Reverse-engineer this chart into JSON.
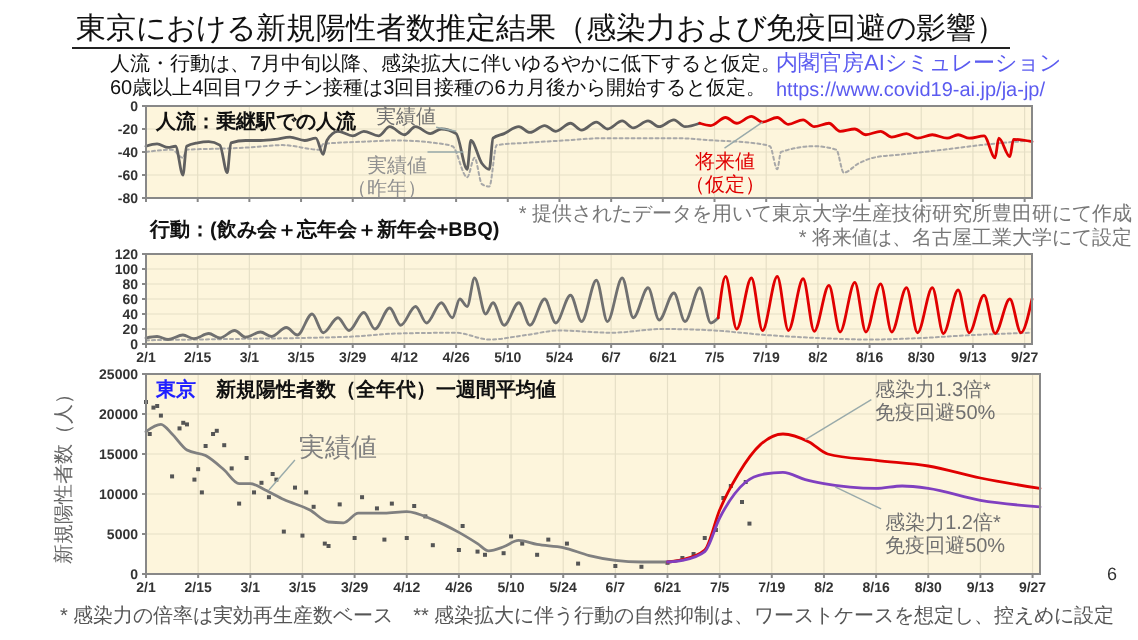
{
  "chart_data": [
    {
      "type": "other",
      "title": "東京における新規陽性者数推定結果（感染力および免疫回避の影響）",
      "subtitle": "人流・行動は、7月中旬以降、感染拡大に伴いゆるやかに低下すると仮定。\n60歳以上4回目ワクチン接種は3回目接種の6カ月後から開始すると仮定。",
      "annotations": [
        "内閣官房AIシミュレーション",
        "https://www.covid19-ai.jp/ja-jp/",
        "* 感染力の倍率は実効再生産数ベース　** 感染拡大に伴う行動の自然抑制は、ワーストケースを想定し、控えめに設定",
        "6"
      ]
    },
    {
      "type": "line",
      "title": "人流：乗継駅での人流",
      "xlim": [
        "--02-01",
        "--09-29"
      ],
      "ylim": [
        -80,
        0
      ],
      "yticks": [
        0,
        -20,
        -40,
        -60,
        -80
      ],
      "xticks": [
        {
          "value": "--02-01",
          "label": null
        },
        {
          "value": "--02-15",
          "label": null
        },
        {
          "value": "--03-01",
          "label": null
        },
        {
          "value": "--03-15",
          "label": null
        },
        {
          "value": "--03-29",
          "label": null
        },
        {
          "value": "--04-12",
          "label": null
        },
        {
          "value": "--04-26",
          "label": null
        },
        {
          "value": "--05-10",
          "label": null
        },
        {
          "value": "--05-24",
          "label": null
        },
        {
          "value": "--06-07",
          "label": null
        },
        {
          "value": "--06-21",
          "label": null
        },
        {
          "value": "--07-05",
          "label": null
        },
        {
          "value": "--07-19",
          "label": null
        },
        {
          "value": "--08-02",
          "label": null
        },
        {
          "value": "--08-16",
          "label": null
        },
        {
          "value": "--08-30",
          "label": null
        },
        {
          "value": "--09-13",
          "label": null
        },
        {
          "value": "--09-27",
          "label": null
        }
      ],
      "tick_labels": "y",
      "grid": true,
      "annotations": [
        {
          "text": "実績値",
          "x": "--04-26",
          "y": -22
        },
        {
          "text": "実績値（昨年）",
          "x": "--04-28",
          "y": -40
        },
        {
          "text": "将来値（仮定）",
          "x": "--07-18",
          "y": -14
        }
      ],
      "series": [
        {
          "color": "#a8a8a8",
          "line_style": "dotted",
          "x": [
            "--02-01",
            "--02-08",
            "--02-11",
            "--02-12",
            "--02-22",
            "--03-01",
            "--03-10",
            "--03-20",
            "--03-21",
            "--04-01",
            "--04-10",
            "--04-20",
            "--04-25",
            "--04-29",
            "--05-01",
            "--05-03",
            "--05-05",
            "--05-07",
            "--05-15",
            "--05-25",
            "--06-05",
            "--06-15",
            "--06-25",
            "--07-05",
            "--07-15",
            "--07-20",
            "--07-22",
            "--07-23",
            "--08-01",
            "--08-07",
            "--08-09",
            "--08-13",
            "--08-17",
            "--08-25",
            "--09-05",
            "--09-15",
            "--09-29"
          ],
          "values": [
            -40,
            -38,
            -45,
            -38,
            -37,
            -36,
            -34,
            -38,
            -33,
            -31,
            -30,
            -32,
            -35,
            -62,
            -45,
            -68,
            -70,
            -34,
            -32,
            -30,
            -28,
            -28,
            -28,
            -30,
            -32,
            -35,
            -55,
            -40,
            -35,
            -38,
            -58,
            -50,
            -45,
            -42,
            -38,
            -34,
            -30
          ]
        },
        {
          "color": "#606060",
          "line_style": "solid",
          "x": [
            "--02-01",
            "--02-04",
            "--02-07",
            "--02-09",
            "--02-11",
            "--02-12",
            "--02-15",
            "--02-18",
            "--02-21",
            "--02-23",
            "--02-24",
            "--02-28",
            "--03-04",
            "--03-08",
            "--03-12",
            "--03-16",
            "--03-19",
            "--03-21",
            "--03-22",
            "--03-25",
            "--03-29",
            "--04-01",
            "--04-05",
            "--04-08",
            "--04-12",
            "--04-15",
            "--04-19",
            "--04-22",
            "--04-26",
            "--04-29",
            "--04-30",
            "--05-03",
            "--05-05",
            "--05-06",
            "--05-09",
            "--05-13",
            "--05-16",
            "--05-20",
            "--05-23",
            "--05-27",
            "--05-30",
            "--06-03",
            "--06-06",
            "--06-10",
            "--06-13",
            "--06-17",
            "--06-20",
            "--06-24",
            "--06-27",
            "--07-01"
          ],
          "values": [
            -35,
            -33,
            -36,
            -35,
            -60,
            -35,
            -32,
            -31,
            -34,
            -58,
            -32,
            -30,
            -30,
            -29,
            -27,
            -30,
            -28,
            -42,
            -30,
            -22,
            -26,
            -22,
            -26,
            -18,
            -25,
            -18,
            -24,
            -20,
            -24,
            -55,
            -30,
            -50,
            -55,
            -28,
            -24,
            -18,
            -23,
            -17,
            -22,
            -15,
            -21,
            -14,
            -20,
            -13,
            -19,
            -13,
            -18,
            -12,
            -18,
            -15
          ]
        },
        {
          "color": "#e00000",
          "line_style": "solid",
          "x": [
            "--07-01",
            "--07-04",
            "--07-08",
            "--07-11",
            "--07-15",
            "--07-18",
            "--07-22",
            "--07-25",
            "--07-29",
            "--08-01",
            "--08-05",
            "--08-08",
            "--08-12",
            "--08-15",
            "--08-19",
            "--08-22",
            "--08-26",
            "--08-29",
            "--09-02",
            "--09-06",
            "--09-09",
            "--09-12",
            "--09-16",
            "--09-19",
            "--09-20",
            "--09-23",
            "--09-24",
            "--09-29"
          ],
          "values": [
            -15,
            -17,
            -10,
            -15,
            -9,
            -14,
            -10,
            -16,
            -12,
            -18,
            -15,
            -22,
            -20,
            -25,
            -22,
            -27,
            -24,
            -28,
            -25,
            -28,
            -25,
            -28,
            -26,
            -45,
            -28,
            -44,
            -29,
            -31
          ]
        }
      ]
    },
    {
      "type": "line",
      "title": "行動：(飲み会＋忘年会＋新年会+BBQ)",
      "xlim": [
        "--02-01",
        "--09-29"
      ],
      "ylim": [
        0,
        120
      ],
      "yticks": [
        0,
        20,
        40,
        60,
        80,
        100,
        120
      ],
      "xticks": [
        {
          "value": "--02-01",
          "label": "2/1"
        },
        {
          "value": "--02-15",
          "label": "2/15"
        },
        {
          "value": "--03-01",
          "label": "3/1"
        },
        {
          "value": "--03-15",
          "label": "3/15"
        },
        {
          "value": "--03-29",
          "label": "3/29"
        },
        {
          "value": "--04-12",
          "label": "4/12"
        },
        {
          "value": "--04-26",
          "label": "4/26"
        },
        {
          "value": "--05-10",
          "label": "5/10"
        },
        {
          "value": "--05-24",
          "label": "5/24"
        },
        {
          "value": "--06-07",
          "label": "6/7"
        },
        {
          "value": "--06-21",
          "label": "6/21"
        },
        {
          "value": "--07-05",
          "label": "7/5"
        },
        {
          "value": "--07-19",
          "label": "7/19"
        },
        {
          "value": "--08-02",
          "label": "8/2"
        },
        {
          "value": "--08-16",
          "label": "8/16"
        },
        {
          "value": "--08-30",
          "label": "8/30"
        },
        {
          "value": "--09-13",
          "label": "9/13"
        },
        {
          "value": "--09-27",
          "label": "9/27"
        }
      ],
      "grid": true,
      "annotations": [
        "* 提供されたデータを用いて東京大学生産技術研究所豊田研にて作成",
        "* 将来値は、名古屋工業大学にて設定"
      ],
      "series": [
        {
          "color": "#a8a8a8",
          "line_style": "dotted",
          "x": [
            "--02-01",
            "--02-15",
            "--03-01",
            "--03-15",
            "--03-29",
            "--04-10",
            "--04-26",
            "--05-05",
            "--05-15",
            "--05-24",
            "--06-07",
            "--06-21",
            "--07-05",
            "--07-19",
            "--08-02",
            "--08-16",
            "--08-30",
            "--09-13",
            "--09-29"
          ],
          "values": [
            5,
            6,
            7,
            8,
            10,
            14,
            15,
            6,
            12,
            18,
            15,
            20,
            18,
            12,
            8,
            6,
            8,
            12,
            15
          ]
        },
        {
          "color": "#707070",
          "line_style": "solid",
          "x": [
            "--02-01",
            "--02-04",
            "--02-07",
            "--02-11",
            "--02-14",
            "--02-18",
            "--02-21",
            "--02-25",
            "--02-28",
            "--03-04",
            "--03-07",
            "--03-11",
            "--03-14",
            "--03-18",
            "--03-21",
            "--03-25",
            "--03-28",
            "--04-01",
            "--04-04",
            "--04-08",
            "--04-11",
            "--04-15",
            "--04-18",
            "--04-22",
            "--04-25",
            "--04-27",
            "--04-29",
            "--05-01",
            "--05-04",
            "--05-06",
            "--05-09",
            "--05-13",
            "--05-16",
            "--05-20",
            "--05-23",
            "--05-27",
            "--05-30",
            "--06-03",
            "--06-06",
            "--06-10",
            "--06-13",
            "--06-17",
            "--06-20",
            "--06-24",
            "--06-27",
            "--07-01",
            "--07-04",
            "--07-06"
          ],
          "values": [
            8,
            10,
            6,
            12,
            7,
            14,
            8,
            18,
            9,
            16,
            10,
            22,
            12,
            40,
            15,
            35,
            18,
            42,
            20,
            48,
            25,
            50,
            28,
            55,
            35,
            60,
            50,
            88,
            40,
            55,
            25,
            55,
            25,
            60,
            28,
            65,
            30,
            85,
            30,
            88,
            35,
            75,
            32,
            68,
            30,
            75,
            28,
            35
          ]
        },
        {
          "color": "#e00000",
          "line_style": "solid",
          "x": [
            "--07-06",
            "--07-08",
            "--07-11",
            "--07-15",
            "--07-18",
            "--07-22",
            "--07-25",
            "--07-29",
            "--08-01",
            "--08-05",
            "--08-08",
            "--08-12",
            "--08-15",
            "--08-19",
            "--08-22",
            "--08-26",
            "--08-29",
            "--09-02",
            "--09-05",
            "--09-09",
            "--09-12",
            "--09-16",
            "--09-19",
            "--09-23",
            "--09-26",
            "--09-29"
          ],
          "values": [
            35,
            90,
            20,
            88,
            18,
            90,
            18,
            87,
            17,
            78,
            16,
            82,
            16,
            80,
            16,
            75,
            15,
            75,
            14,
            72,
            15,
            65,
            14,
            60,
            15,
            60
          ]
        }
      ]
    },
    {
      "type": "line",
      "title": "東京",
      "subtitle": "新規陽性者数（全年代）一週間平均値",
      "ylabel": "新規陽性者数（人）",
      "xlim": [
        "--02-01",
        "--09-29"
      ],
      "ylim": [
        0,
        25000
      ],
      "yticks": [
        0,
        5000,
        10000,
        15000,
        20000,
        25000
      ],
      "xticks": [
        {
          "value": "--02-01",
          "label": "2/1"
        },
        {
          "value": "--02-15",
          "label": "2/15"
        },
        {
          "value": "--03-01",
          "label": "3/1"
        },
        {
          "value": "--03-15",
          "label": "3/15"
        },
        {
          "value": "--03-29",
          "label": "3/29"
        },
        {
          "value": "--04-12",
          "label": "4/12"
        },
        {
          "value": "--04-26",
          "label": "4/26"
        },
        {
          "value": "--05-10",
          "label": "5/10"
        },
        {
          "value": "--05-24",
          "label": "5/24"
        },
        {
          "value": "--06-07",
          "label": "6/7"
        },
        {
          "value": "--06-21",
          "label": "6/21"
        },
        {
          "value": "--07-05",
          "label": "7/5"
        },
        {
          "value": "--07-19",
          "label": "7/19"
        },
        {
          "value": "--08-02",
          "label": "8/2"
        },
        {
          "value": "--08-16",
          "label": "8/16"
        },
        {
          "value": "--08-30",
          "label": "8/30"
        },
        {
          "value": "--09-13",
          "label": "9/13"
        },
        {
          "value": "--09-27",
          "label": "9/27"
        }
      ],
      "grid": true,
      "annotations": [
        {
          "text": "実績値",
          "x": "--03-06",
          "y": 10500
        },
        {
          "text": "感染力1.3倍*\n免疫回避50%",
          "x": "--07-28",
          "y": 16800
        },
        {
          "text": "感染力1.2倍*\n免疫回避50%",
          "x": "--08-05",
          "y": 10900
        }
      ],
      "series": [
        {
          "type": "scatter",
          "marker": "square",
          "color": "#555555",
          "x": [
            "--02-01",
            "--02-02",
            "--02-03",
            "--02-04",
            "--02-05",
            "--02-08",
            "--02-10",
            "--02-11",
            "--02-12",
            "--02-14",
            "--02-15",
            "--02-16",
            "--02-17",
            "--02-19",
            "--02-20",
            "--02-22",
            "--02-24",
            "--02-26",
            "--02-28",
            "--03-02",
            "--03-04",
            "--03-06",
            "--03-07",
            "--03-08",
            "--03-10",
            "--03-13",
            "--03-15",
            "--03-16",
            "--03-18",
            "--03-21",
            "--03-22",
            "--03-25",
            "--03-29",
            "--03-31",
            "--04-04",
            "--04-06",
            "--04-08",
            "--04-12",
            "--04-14",
            "--04-17",
            "--04-19",
            "--04-26",
            "--04-27",
            "--05-01",
            "--05-03",
            "--05-08",
            "--05-10",
            "--05-13",
            "--05-17",
            "--05-20",
            "--05-25",
            "--05-28",
            "--06-07",
            "--06-14",
            "--06-21",
            "--06-25",
            "--06-28",
            "--07-01",
            "--07-04",
            "--07-06",
            "--07-08",
            "--07-11",
            "--07-12",
            "--07-13"
          ],
          "values": [
            21500,
            17500,
            20800,
            21000,
            19800,
            12200,
            18200,
            18900,
            18700,
            11800,
            13100,
            10200,
            16000,
            17500,
            17900,
            16100,
            13200,
            8800,
            14500,
            10200,
            11400,
            9600,
            12500,
            11800,
            5300,
            10800,
            4800,
            10200,
            8400,
            3800,
            3500,
            8700,
            4500,
            9600,
            8200,
            4300,
            8800,
            4500,
            8500,
            7200,
            3600,
            3000,
            6000,
            2800,
            2400,
            2600,
            4700,
            3800,
            2400,
            4300,
            3800,
            1300,
            1000,
            900,
            1400,
            2000,
            2500,
            4500,
            5500,
            9500,
            11000,
            9000,
            11500,
            6300
          ]
        },
        {
          "color": "#808080",
          "line_style": "solid",
          "x": [
            "--02-01",
            "--02-05",
            "--02-08",
            "--02-12",
            "--02-17",
            "--02-22",
            "--02-26",
            "--03-01",
            "--03-05",
            "--03-10",
            "--03-17",
            "--03-22",
            "--03-26",
            "--03-30",
            "--04-06",
            "--04-12",
            "--04-19",
            "--04-26",
            "--05-01",
            "--05-04",
            "--05-08",
            "--05-12",
            "--05-17",
            "--05-24",
            "--05-31",
            "--06-07",
            "--06-14",
            "--06-21",
            "--06-25"
          ],
          "values": [
            17800,
            18700,
            17500,
            15500,
            14800,
            13000,
            11300,
            11300,
            10500,
            9300,
            8000,
            6500,
            6400,
            7600,
            7600,
            7800,
            6800,
            5200,
            3800,
            2900,
            3400,
            4200,
            3700,
            3300,
            2300,
            1700,
            1500,
            1500,
            1800
          ]
        },
        {
          "color": "#e00000",
          "line_style": "solid",
          "x": [
            "--06-21",
            "--06-25",
            "--07-01",
            "--07-05",
            "--07-10",
            "--07-16",
            "--07-22",
            "--07-29",
            "--08-03",
            "--08-16",
            "--08-30",
            "--09-13",
            "--09-29"
          ],
          "values": [
            1500,
            1800,
            3000,
            8000,
            12500,
            16200,
            17500,
            16500,
            15000,
            14200,
            13500,
            12000,
            10700
          ]
        },
        {
          "color": "#8040c0",
          "line_style": "solid",
          "x": [
            "--06-21",
            "--06-25",
            "--07-01",
            "--07-05",
            "--07-12",
            "--07-17",
            "--07-22",
            "--07-28",
            "--08-02",
            "--08-16",
            "--08-23",
            "--08-30",
            "--09-13",
            "--09-29"
          ],
          "values": [
            1500,
            1700,
            2800,
            7000,
            11500,
            12500,
            12700,
            11800,
            11300,
            10700,
            11000,
            10700,
            9200,
            8400
          ]
        }
      ]
    }
  ]
}
